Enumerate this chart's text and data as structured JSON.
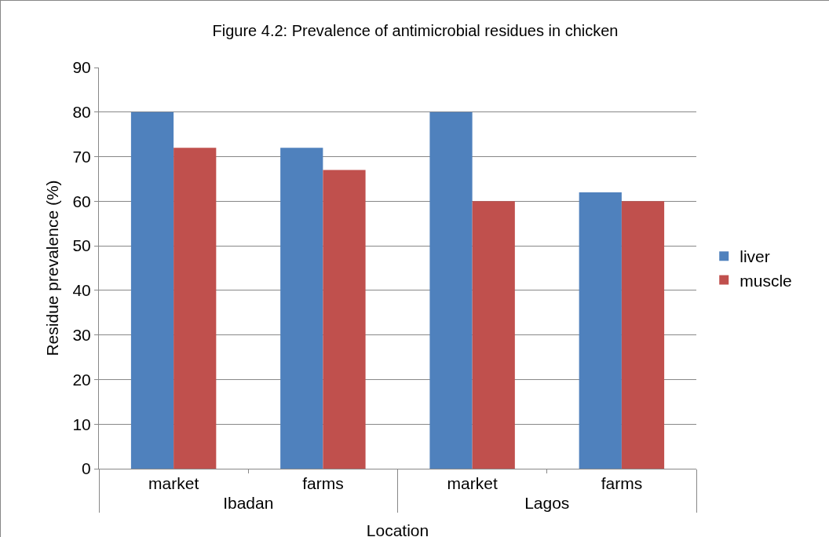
{
  "chart_data": {
    "type": "bar",
    "title": "Figure 4.2: Prevalence of antimicrobial residues in chicken",
    "xlabel": "Location",
    "ylabel": "Residue prevalence (%)",
    "categories": [
      "market",
      "farms",
      "market",
      "farms"
    ],
    "annotations": [
      "Ibadan",
      "Lagos"
    ],
    "series": [
      {
        "name": "liver",
        "color": "#4f81bd",
        "values": [
          80,
          72,
          80,
          62
        ]
      },
      {
        "name": "muscle",
        "color": "#c0504d",
        "values": [
          72,
          67,
          60,
          60
        ]
      }
    ],
    "ylim": [
      0,
      90
    ],
    "yticks": [
      0,
      10,
      20,
      30,
      40,
      50,
      60,
      70,
      80,
      90
    ],
    "grid": "y",
    "legend": "right"
  }
}
